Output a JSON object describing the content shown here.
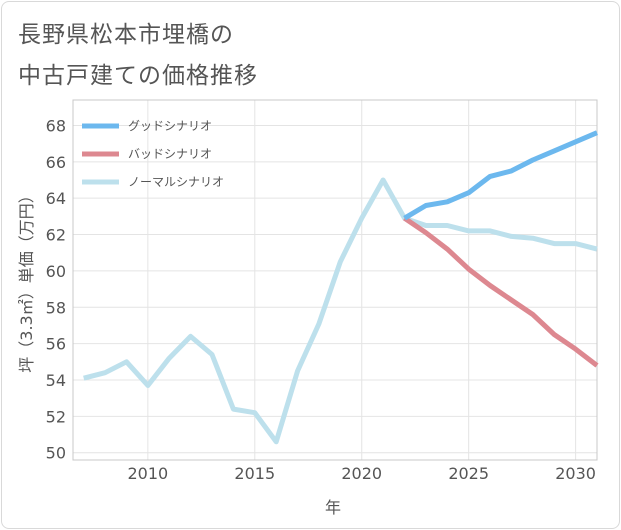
{
  "header": {
    "title_line1": "長野県松本市埋橋の",
    "title_line2": "中古戸建ての価格推移"
  },
  "chart_data": {
    "type": "line",
    "xlabel": "年",
    "ylabel": "坪（3.3㎡）単価（万円）",
    "xlim": [
      2006.5,
      2031
    ],
    "ylim": [
      49.6,
      69.4
    ],
    "x_ticks": [
      2010,
      2015,
      2020,
      2025,
      2030
    ],
    "y_ticks": [
      50,
      52,
      54,
      56,
      58,
      60,
      62,
      64,
      66,
      68
    ],
    "grid": true,
    "legend_position": "top-left",
    "series": [
      {
        "name": "グッドシナリオ",
        "color": "#6cb8ee",
        "x": [
          2022,
          2023,
          2024,
          2025,
          2026,
          2027,
          2028,
          2029,
          2030,
          2031
        ],
        "y": [
          62.9,
          63.6,
          63.8,
          64.3,
          65.2,
          65.5,
          66.1,
          66.6,
          67.1,
          67.6
        ]
      },
      {
        "name": "バッドシナリオ",
        "color": "#dd8890",
        "x": [
          2022,
          2023,
          2024,
          2025,
          2026,
          2027,
          2028,
          2029,
          2030,
          2031
        ],
        "y": [
          62.9,
          62.1,
          61.2,
          60.1,
          59.2,
          58.4,
          57.6,
          56.5,
          55.7,
          54.8
        ]
      },
      {
        "name": "ノーマルシナリオ",
        "color": "#bde0ec",
        "x": [
          2007,
          2008,
          2009,
          2010,
          2011,
          2012,
          2013,
          2014,
          2015,
          2016,
          2017,
          2018,
          2019,
          2020,
          2021,
          2022,
          2023,
          2024,
          2025,
          2026,
          2027,
          2028,
          2029,
          2030,
          2031
        ],
        "y": [
          54.1,
          54.4,
          55.0,
          53.7,
          55.2,
          56.4,
          55.4,
          52.4,
          52.2,
          50.6,
          54.5,
          57.1,
          60.5,
          62.9,
          65.0,
          62.9,
          62.5,
          62.5,
          62.2,
          62.2,
          61.9,
          61.8,
          61.5,
          61.5,
          61.2
        ]
      }
    ]
  }
}
